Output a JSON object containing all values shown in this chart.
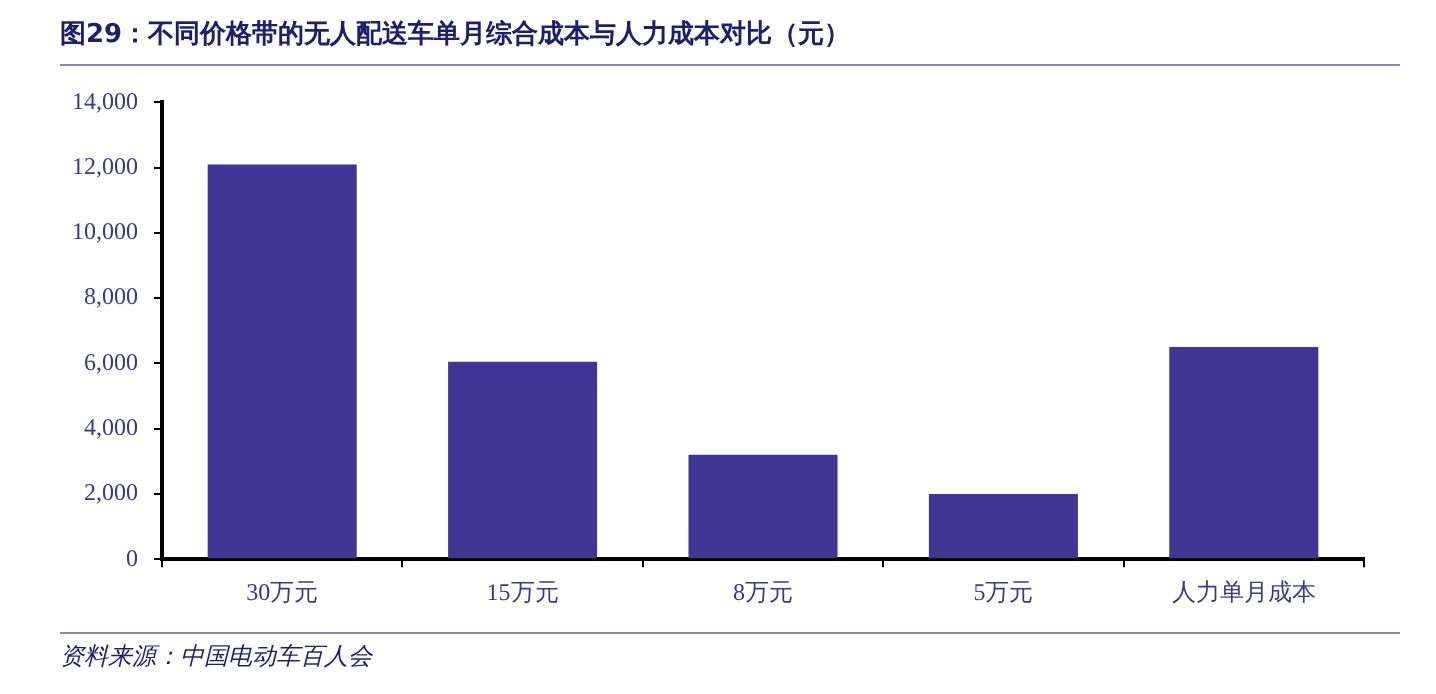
{
  "chart_data": {
    "type": "bar",
    "title": "图29：不同价格带的无人配送车单月综合成本与人力成本对比（元）",
    "annotations": [
      "资料来源：中国电动车百人会"
    ],
    "categories": [
      "30万元",
      "15万元",
      "8万元",
      "5万元",
      "人力单月成本"
    ],
    "values": [
      12100,
      6050,
      3200,
      2000,
      6500
    ],
    "color": "#433594",
    "ylim": [
      0,
      14000
    ],
    "yticks": [
      {
        "value": 0,
        "label": "0"
      },
      {
        "value": 2000,
        "label": "2,000"
      },
      {
        "value": 4000,
        "label": "4,000"
      },
      {
        "value": 6000,
        "label": "6,000"
      },
      {
        "value": 8000,
        "label": "8,000"
      },
      {
        "value": 10000,
        "label": "10,000"
      },
      {
        "value": 12000,
        "label": "12,000"
      },
      {
        "value": 14000,
        "label": "14,000"
      }
    ],
    "grid": false,
    "legend": false
  }
}
